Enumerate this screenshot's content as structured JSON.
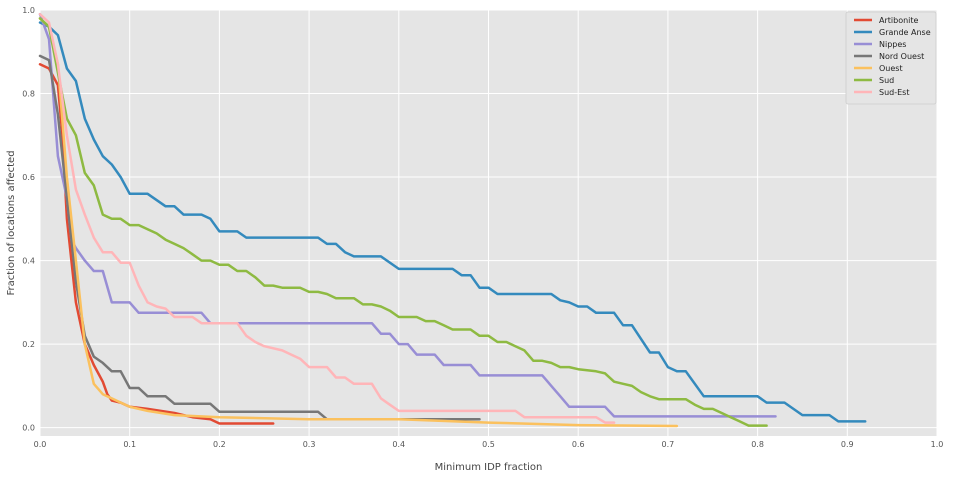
{
  "chart_data": {
    "type": "line",
    "title": "",
    "xlabel": "Minimum IDP fraction",
    "ylabel": "Fraction of locations affected",
    "xlim": [
      0.0,
      1.0
    ],
    "ylim": [
      -0.02,
      1.0
    ],
    "x_ticks": [
      0.0,
      0.1,
      0.2,
      0.3,
      0.4,
      0.5,
      0.6,
      0.7,
      0.8,
      0.9,
      1.0
    ],
    "x_tick_labels": [
      "0.0",
      "0.1",
      "0.2",
      "0.3",
      "0.4",
      "0.5",
      "0.6",
      "0.7",
      "0.8",
      "0.9",
      "1.0"
    ],
    "y_ticks": [
      0.0,
      0.2,
      0.4,
      0.6,
      0.8,
      1.0
    ],
    "y_tick_labels": [
      "0.0",
      "0.2",
      "0.4",
      "0.6",
      "0.8",
      "1.0"
    ],
    "grid": true,
    "legend_position": "top-right",
    "background": "#e5e5e5",
    "series": [
      {
        "name": "Artibonite",
        "color": "#e24a33",
        "points": [
          [
            0.0,
            0.87
          ],
          [
            0.01,
            0.86
          ],
          [
            0.02,
            0.82
          ],
          [
            0.025,
            0.7
          ],
          [
            0.03,
            0.5
          ],
          [
            0.04,
            0.3
          ],
          [
            0.05,
            0.2
          ],
          [
            0.06,
            0.15
          ],
          [
            0.07,
            0.11
          ],
          [
            0.075,
            0.08
          ],
          [
            0.08,
            0.065
          ],
          [
            0.09,
            0.06
          ],
          [
            0.1,
            0.05
          ],
          [
            0.12,
            0.045
          ],
          [
            0.15,
            0.035
          ],
          [
            0.17,
            0.025
          ],
          [
            0.19,
            0.02
          ],
          [
            0.2,
            0.01
          ],
          [
            0.26,
            0.01
          ]
        ]
      },
      {
        "name": "Grande Anse",
        "color": "#348abd",
        "points": [
          [
            0.0,
            0.97
          ],
          [
            0.01,
            0.96
          ],
          [
            0.02,
            0.94
          ],
          [
            0.03,
            0.86
          ],
          [
            0.04,
            0.83
          ],
          [
            0.05,
            0.74
          ],
          [
            0.06,
            0.69
          ],
          [
            0.07,
            0.65
          ],
          [
            0.08,
            0.63
          ],
          [
            0.09,
            0.6
          ],
          [
            0.1,
            0.56
          ],
          [
            0.12,
            0.56
          ],
          [
            0.14,
            0.53
          ],
          [
            0.15,
            0.53
          ],
          [
            0.16,
            0.51
          ],
          [
            0.18,
            0.51
          ],
          [
            0.19,
            0.5
          ],
          [
            0.2,
            0.47
          ],
          [
            0.22,
            0.47
          ],
          [
            0.23,
            0.455
          ],
          [
            0.31,
            0.455
          ],
          [
            0.32,
            0.44
          ],
          [
            0.33,
            0.44
          ],
          [
            0.34,
            0.42
          ],
          [
            0.35,
            0.41
          ],
          [
            0.38,
            0.41
          ],
          [
            0.4,
            0.38
          ],
          [
            0.46,
            0.38
          ],
          [
            0.47,
            0.365
          ],
          [
            0.48,
            0.365
          ],
          [
            0.49,
            0.335
          ],
          [
            0.5,
            0.335
          ],
          [
            0.51,
            0.32
          ],
          [
            0.57,
            0.32
          ],
          [
            0.58,
            0.305
          ],
          [
            0.59,
            0.3
          ],
          [
            0.6,
            0.29
          ],
          [
            0.61,
            0.29
          ],
          [
            0.62,
            0.275
          ],
          [
            0.64,
            0.275
          ],
          [
            0.65,
            0.245
          ],
          [
            0.66,
            0.245
          ],
          [
            0.68,
            0.18
          ],
          [
            0.69,
            0.18
          ],
          [
            0.7,
            0.145
          ],
          [
            0.71,
            0.135
          ],
          [
            0.72,
            0.135
          ],
          [
            0.74,
            0.075
          ],
          [
            0.8,
            0.075
          ],
          [
            0.81,
            0.06
          ],
          [
            0.83,
            0.06
          ],
          [
            0.85,
            0.03
          ],
          [
            0.88,
            0.03
          ],
          [
            0.89,
            0.015
          ],
          [
            0.92,
            0.015
          ]
        ]
      },
      {
        "name": "Nippes",
        "color": "#988ed5",
        "points": [
          [
            0.0,
            0.99
          ],
          [
            0.01,
            0.93
          ],
          [
            0.02,
            0.65
          ],
          [
            0.03,
            0.55
          ],
          [
            0.035,
            0.45
          ],
          [
            0.04,
            0.43
          ],
          [
            0.05,
            0.4
          ],
          [
            0.06,
            0.375
          ],
          [
            0.07,
            0.375
          ],
          [
            0.08,
            0.3
          ],
          [
            0.1,
            0.3
          ],
          [
            0.11,
            0.275
          ],
          [
            0.18,
            0.275
          ],
          [
            0.19,
            0.25
          ],
          [
            0.37,
            0.25
          ],
          [
            0.38,
            0.225
          ],
          [
            0.39,
            0.225
          ],
          [
            0.4,
            0.2
          ],
          [
            0.41,
            0.2
          ],
          [
            0.42,
            0.175
          ],
          [
            0.44,
            0.175
          ],
          [
            0.45,
            0.15
          ],
          [
            0.48,
            0.15
          ],
          [
            0.49,
            0.125
          ],
          [
            0.56,
            0.125
          ],
          [
            0.57,
            0.1
          ],
          [
            0.58,
            0.075
          ],
          [
            0.59,
            0.05
          ],
          [
            0.63,
            0.05
          ],
          [
            0.64,
            0.027
          ],
          [
            0.82,
            0.027
          ]
        ]
      },
      {
        "name": "Nord Ouest",
        "color": "#777777",
        "points": [
          [
            0.0,
            0.89
          ],
          [
            0.01,
            0.88
          ],
          [
            0.02,
            0.75
          ],
          [
            0.03,
            0.55
          ],
          [
            0.04,
            0.35
          ],
          [
            0.05,
            0.22
          ],
          [
            0.06,
            0.17
          ],
          [
            0.07,
            0.155
          ],
          [
            0.08,
            0.135
          ],
          [
            0.09,
            0.135
          ],
          [
            0.1,
            0.095
          ],
          [
            0.11,
            0.095
          ],
          [
            0.12,
            0.075
          ],
          [
            0.14,
            0.075
          ],
          [
            0.15,
            0.057
          ],
          [
            0.19,
            0.057
          ],
          [
            0.2,
            0.038
          ],
          [
            0.31,
            0.038
          ],
          [
            0.32,
            0.02
          ],
          [
            0.49,
            0.02
          ]
        ]
      },
      {
        "name": "Ouest",
        "color": "#fbc15e",
        "points": [
          [
            0.0,
            0.98
          ],
          [
            0.01,
            0.96
          ],
          [
            0.02,
            0.87
          ],
          [
            0.03,
            0.6
          ],
          [
            0.04,
            0.4
          ],
          [
            0.05,
            0.2
          ],
          [
            0.06,
            0.105
          ],
          [
            0.07,
            0.08
          ],
          [
            0.08,
            0.07
          ],
          [
            0.1,
            0.05
          ],
          [
            0.12,
            0.04
          ],
          [
            0.15,
            0.03
          ],
          [
            0.2,
            0.025
          ],
          [
            0.3,
            0.02
          ],
          [
            0.4,
            0.02
          ],
          [
            0.5,
            0.012
          ],
          [
            0.6,
            0.006
          ],
          [
            0.71,
            0.004
          ]
        ]
      },
      {
        "name": "Sud",
        "color": "#8eba42",
        "points": [
          [
            0.0,
            0.98
          ],
          [
            0.01,
            0.96
          ],
          [
            0.02,
            0.85
          ],
          [
            0.03,
            0.74
          ],
          [
            0.04,
            0.7
          ],
          [
            0.05,
            0.61
          ],
          [
            0.06,
            0.58
          ],
          [
            0.07,
            0.51
          ],
          [
            0.08,
            0.5
          ],
          [
            0.09,
            0.5
          ],
          [
            0.1,
            0.485
          ],
          [
            0.11,
            0.485
          ],
          [
            0.12,
            0.475
          ],
          [
            0.13,
            0.465
          ],
          [
            0.14,
            0.45
          ],
          [
            0.15,
            0.44
          ],
          [
            0.16,
            0.43
          ],
          [
            0.17,
            0.415
          ],
          [
            0.18,
            0.4
          ],
          [
            0.19,
            0.4
          ],
          [
            0.2,
            0.39
          ],
          [
            0.21,
            0.39
          ],
          [
            0.22,
            0.375
          ],
          [
            0.23,
            0.375
          ],
          [
            0.24,
            0.36
          ],
          [
            0.25,
            0.34
          ],
          [
            0.26,
            0.34
          ],
          [
            0.27,
            0.335
          ],
          [
            0.29,
            0.335
          ],
          [
            0.3,
            0.325
          ],
          [
            0.31,
            0.325
          ],
          [
            0.32,
            0.32
          ],
          [
            0.33,
            0.31
          ],
          [
            0.35,
            0.31
          ],
          [
            0.36,
            0.295
          ],
          [
            0.37,
            0.295
          ],
          [
            0.38,
            0.29
          ],
          [
            0.39,
            0.28
          ],
          [
            0.4,
            0.265
          ],
          [
            0.42,
            0.265
          ],
          [
            0.43,
            0.255
          ],
          [
            0.44,
            0.255
          ],
          [
            0.45,
            0.245
          ],
          [
            0.46,
            0.235
          ],
          [
            0.48,
            0.235
          ],
          [
            0.49,
            0.22
          ],
          [
            0.5,
            0.22
          ],
          [
            0.51,
            0.205
          ],
          [
            0.52,
            0.205
          ],
          [
            0.53,
            0.195
          ],
          [
            0.54,
            0.185
          ],
          [
            0.55,
            0.16
          ],
          [
            0.56,
            0.16
          ],
          [
            0.57,
            0.155
          ],
          [
            0.58,
            0.145
          ],
          [
            0.59,
            0.145
          ],
          [
            0.6,
            0.14
          ],
          [
            0.62,
            0.135
          ],
          [
            0.63,
            0.13
          ],
          [
            0.64,
            0.11
          ],
          [
            0.65,
            0.105
          ],
          [
            0.66,
            0.1
          ],
          [
            0.67,
            0.085
          ],
          [
            0.68,
            0.075
          ],
          [
            0.69,
            0.068
          ],
          [
            0.72,
            0.068
          ],
          [
            0.73,
            0.055
          ],
          [
            0.74,
            0.045
          ],
          [
            0.75,
            0.045
          ],
          [
            0.76,
            0.035
          ],
          [
            0.77,
            0.025
          ],
          [
            0.78,
            0.015
          ],
          [
            0.79,
            0.005
          ],
          [
            0.81,
            0.005
          ]
        ]
      },
      {
        "name": "Sud-Est",
        "color": "#ffb5b8",
        "points": [
          [
            0.0,
            0.99
          ],
          [
            0.01,
            0.97
          ],
          [
            0.02,
            0.87
          ],
          [
            0.03,
            0.7
          ],
          [
            0.04,
            0.57
          ],
          [
            0.05,
            0.51
          ],
          [
            0.06,
            0.455
          ],
          [
            0.07,
            0.42
          ],
          [
            0.08,
            0.42
          ],
          [
            0.09,
            0.395
          ],
          [
            0.1,
            0.395
          ],
          [
            0.11,
            0.34
          ],
          [
            0.12,
            0.3
          ],
          [
            0.13,
            0.29
          ],
          [
            0.14,
            0.285
          ],
          [
            0.15,
            0.265
          ],
          [
            0.17,
            0.265
          ],
          [
            0.18,
            0.25
          ],
          [
            0.22,
            0.25
          ],
          [
            0.23,
            0.22
          ],
          [
            0.24,
            0.205
          ],
          [
            0.25,
            0.195
          ],
          [
            0.27,
            0.185
          ],
          [
            0.28,
            0.175
          ],
          [
            0.29,
            0.165
          ],
          [
            0.3,
            0.145
          ],
          [
            0.32,
            0.145
          ],
          [
            0.33,
            0.12
          ],
          [
            0.34,
            0.12
          ],
          [
            0.35,
            0.105
          ],
          [
            0.37,
            0.105
          ],
          [
            0.38,
            0.07
          ],
          [
            0.39,
            0.055
          ],
          [
            0.4,
            0.04
          ],
          [
            0.53,
            0.04
          ],
          [
            0.54,
            0.025
          ],
          [
            0.62,
            0.025
          ],
          [
            0.63,
            0.012
          ],
          [
            0.64,
            0.012
          ]
        ]
      }
    ]
  }
}
